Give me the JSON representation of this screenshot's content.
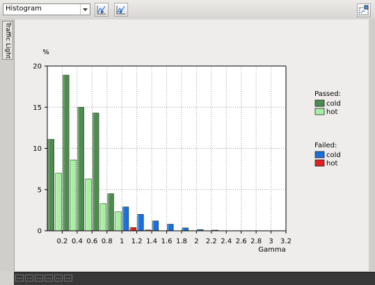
{
  "toolbar": {
    "view_selected": "Histogram"
  },
  "side_tab": {
    "label": "Traffic Light"
  },
  "statusbar": {
    "cells": [
      "...",
      "...",
      "...",
      "...",
      "...",
      "..."
    ]
  },
  "chart_data": {
    "type": "bar",
    "xlabel": "Gamma",
    "ylabel": "%",
    "ylim": [
      0,
      20
    ],
    "xlim": [
      0,
      3.2
    ],
    "grid": true,
    "bin_width": 0.2,
    "yticks": [
      "0",
      "5",
      "10",
      "15",
      "20"
    ],
    "xticks": [
      "0.2",
      "0.4",
      "0.6",
      "0.8",
      "1",
      "1.2",
      "1.4",
      "1.6",
      "1.8",
      "2",
      "2.2",
      "2.4",
      "2.6",
      "2.8",
      "3",
      "3.2"
    ],
    "bin_starts": [
      0,
      0.2,
      0.4,
      0.6,
      0.8,
      1.0,
      1.2,
      1.4,
      1.6,
      1.8,
      2.0,
      2.2
    ],
    "series": [
      {
        "group": "Passed",
        "name": "cold",
        "color": "#4e8b4e",
        "values": [
          11.1,
          18.9,
          15.0,
          14.3,
          4.5,
          0,
          0,
          0,
          0,
          0,
          0,
          0
        ]
      },
      {
        "group": "Passed",
        "name": "hot",
        "color": "#a8f0a0",
        "values": [
          7.0,
          8.6,
          6.3,
          3.3,
          2.3,
          0,
          0,
          0,
          0,
          0,
          0,
          0
        ]
      },
      {
        "group": "Failed",
        "name": "cold",
        "color": "#1c6fd8",
        "values": [
          0,
          0,
          0,
          0,
          0,
          2.9,
          2.0,
          1.2,
          0.8,
          0.35,
          0.15,
          0.08
        ]
      },
      {
        "group": "Failed",
        "name": "hot",
        "color": "#e02020",
        "values": [
          0,
          0,
          0,
          0,
          0,
          0.4,
          0.1,
          0,
          0,
          0,
          0,
          0
        ]
      }
    ],
    "legend": [
      {
        "title": "Passed:",
        "entries": [
          "cold",
          "hot"
        ]
      },
      {
        "title": "Failed:",
        "entries": [
          "cold",
          "hot"
        ]
      }
    ]
  }
}
